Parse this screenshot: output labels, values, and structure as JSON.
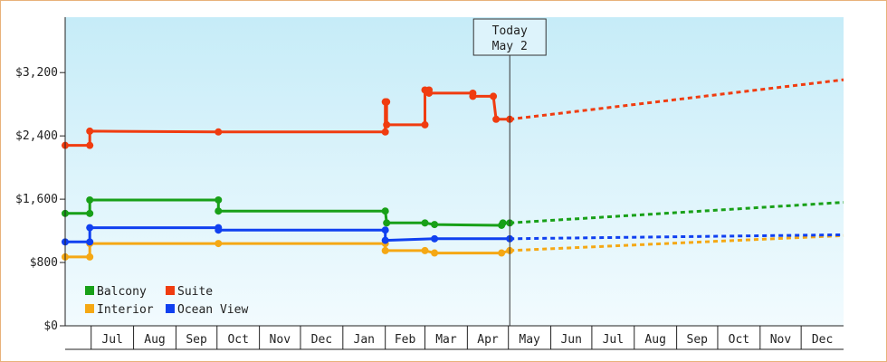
{
  "chart_data": {
    "type": "line",
    "title": "",
    "xlabel": "",
    "ylabel": "",
    "ylim": [
      0,
      3900
    ],
    "y_ticks": [
      {
        "value": 0,
        "label": "$0"
      },
      {
        "value": 800,
        "label": "$800"
      },
      {
        "value": 1600,
        "label": "$1,600"
      },
      {
        "value": 2400,
        "label": "$2,400"
      },
      {
        "value": 3200,
        "label": "$3,200"
      }
    ],
    "x_range": [
      "2023-06-12",
      "2024-01-01"
    ],
    "months": [
      {
        "label": "Jul",
        "start": "2023-07-01",
        "end": "2023-08-01"
      },
      {
        "label": "Aug",
        "start": "2023-08-01",
        "end": "2023-09-01"
      },
      {
        "label": "Sep",
        "start": "2023-09-01",
        "end": "2023-10-01"
      },
      {
        "label": "Oct",
        "start": "2023-10-01",
        "end": "2023-11-01"
      },
      {
        "label": "Nov",
        "start": "2023-11-01",
        "end": "2023-12-01"
      },
      {
        "label": "Dec",
        "start": "2023-12-01",
        "end": "2024-01-01"
      },
      {
        "label": "Jan",
        "start": "2024-01-01",
        "end": "2024-02-01"
      },
      {
        "label": "Feb",
        "start": "2024-02-01",
        "end": "2024-03-01"
      },
      {
        "label": "Mar",
        "start": "2024-03-01",
        "end": "2024-04-01"
      },
      {
        "label": "Apr",
        "start": "2024-04-01",
        "end": "2024-05-01"
      },
      {
        "label": "May",
        "start": "2024-05-01",
        "end": "2024-06-01"
      },
      {
        "label": "Jun",
        "start": "2024-06-01",
        "end": "2024-07-01"
      },
      {
        "label": "Jul",
        "start": "2024-07-01",
        "end": "2024-08-01"
      },
      {
        "label": "Aug",
        "start": "2024-08-01",
        "end": "2024-09-01"
      },
      {
        "label": "Sep",
        "start": "2024-09-01",
        "end": "2024-10-01"
      },
      {
        "label": "Oct",
        "start": "2024-10-01",
        "end": "2024-11-01"
      },
      {
        "label": "Nov",
        "start": "2024-11-01",
        "end": "2024-12-01"
      },
      {
        "label": "Dec",
        "start": "2024-12-01",
        "end": "2025-01-01"
      }
    ],
    "today": {
      "line1": "Today",
      "line2": "May 2",
      "date": "2024-05-02"
    },
    "legend": {
      "placement": "bottom-left"
    },
    "series": [
      {
        "name": "Balcony",
        "color": "#18a018",
        "points": [
          {
            "date": "2023-06-12",
            "value": 1420
          },
          {
            "date": "2023-06-30",
            "value": 1420
          },
          {
            "date": "2023-06-30",
            "value": 1590
          },
          {
            "date": "2023-10-02",
            "value": 1590
          },
          {
            "date": "2023-10-02",
            "value": 1450
          },
          {
            "date": "2024-02-01",
            "value": 1450
          },
          {
            "date": "2024-02-02",
            "value": 1300
          },
          {
            "date": "2024-03-01",
            "value": 1300
          },
          {
            "date": "2024-03-08",
            "value": 1280
          },
          {
            "date": "2024-04-26",
            "value": 1270
          },
          {
            "date": "2024-04-27",
            "value": 1300
          },
          {
            "date": "2024-05-02",
            "value": 1300
          }
        ],
        "forecast": [
          {
            "date": "2024-05-02",
            "value": 1300
          },
          {
            "date": "2025-01-01",
            "value": 1560
          }
        ]
      },
      {
        "name": "Suite",
        "color": "#f03c10",
        "points": [
          {
            "date": "2023-06-12",
            "value": 2280
          },
          {
            "date": "2023-06-30",
            "value": 2280
          },
          {
            "date": "2023-06-30",
            "value": 2460
          },
          {
            "date": "2023-10-02",
            "value": 2450
          },
          {
            "date": "2024-02-01",
            "value": 2450
          },
          {
            "date": "2024-02-01",
            "value": 2830
          },
          {
            "date": "2024-02-02",
            "value": 2830
          },
          {
            "date": "2024-02-02",
            "value": 2540
          },
          {
            "date": "2024-03-01",
            "value": 2540
          },
          {
            "date": "2024-03-01",
            "value": 2980
          },
          {
            "date": "2024-03-04",
            "value": 2980
          },
          {
            "date": "2024-03-04",
            "value": 2940
          },
          {
            "date": "2024-04-05",
            "value": 2940
          },
          {
            "date": "2024-04-05",
            "value": 2900
          },
          {
            "date": "2024-04-20",
            "value": 2900
          },
          {
            "date": "2024-04-22",
            "value": 2610
          },
          {
            "date": "2024-05-02",
            "value": 2610
          }
        ],
        "forecast": [
          {
            "date": "2024-05-02",
            "value": 2610
          },
          {
            "date": "2025-01-01",
            "value": 3110
          }
        ]
      },
      {
        "name": "Interior",
        "color": "#f5a814",
        "points": [
          {
            "date": "2023-06-12",
            "value": 870
          },
          {
            "date": "2023-06-30",
            "value": 870
          },
          {
            "date": "2023-06-30",
            "value": 1040
          },
          {
            "date": "2023-10-02",
            "value": 1040
          },
          {
            "date": "2024-02-01",
            "value": 1040
          },
          {
            "date": "2024-02-01",
            "value": 950
          },
          {
            "date": "2024-03-01",
            "value": 950
          },
          {
            "date": "2024-03-08",
            "value": 920
          },
          {
            "date": "2024-04-26",
            "value": 920
          },
          {
            "date": "2024-05-02",
            "value": 950
          }
        ],
        "forecast": [
          {
            "date": "2024-05-02",
            "value": 950
          },
          {
            "date": "2025-01-01",
            "value": 1140
          }
        ]
      },
      {
        "name": "Ocean View",
        "color": "#1040f0",
        "points": [
          {
            "date": "2023-06-12",
            "value": 1060
          },
          {
            "date": "2023-06-30",
            "value": 1060
          },
          {
            "date": "2023-06-30",
            "value": 1240
          },
          {
            "date": "2023-10-02",
            "value": 1240
          },
          {
            "date": "2023-10-02",
            "value": 1210
          },
          {
            "date": "2024-02-01",
            "value": 1210
          },
          {
            "date": "2024-02-01",
            "value": 1080
          },
          {
            "date": "2024-03-08",
            "value": 1100
          },
          {
            "date": "2024-05-02",
            "value": 1100
          }
        ],
        "forecast": [
          {
            "date": "2024-05-02",
            "value": 1100
          },
          {
            "date": "2025-01-01",
            "value": 1150
          }
        ]
      }
    ]
  },
  "legend_items": [
    "Balcony",
    "Suite",
    "Interior",
    "Ocean View"
  ]
}
